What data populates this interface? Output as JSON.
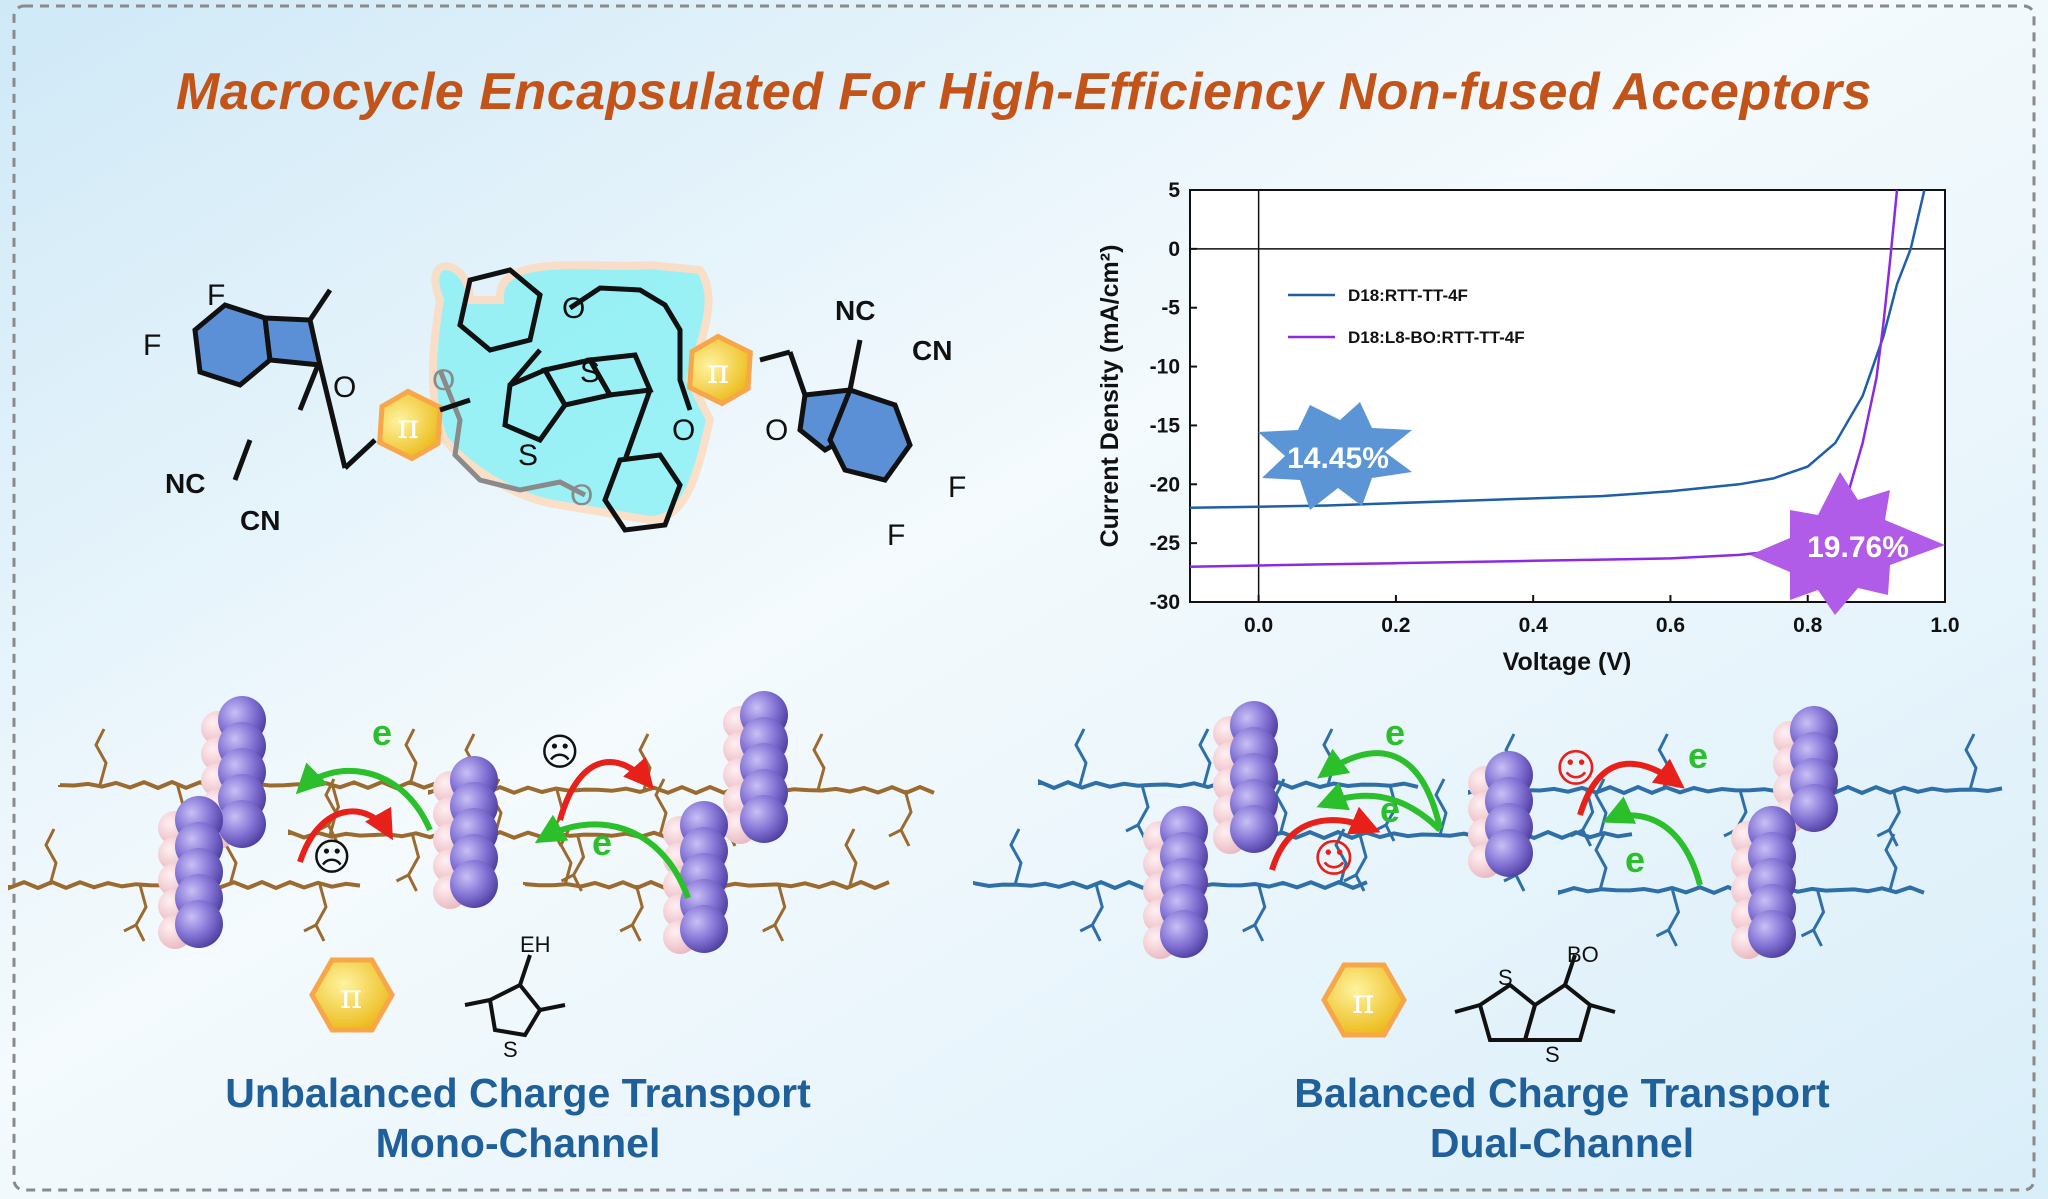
{
  "title": "Macrocycle Encapsulated For High-Efficiency Non-fused Acceptors",
  "molecule": {
    "atom_F": "F",
    "atom_O": "O",
    "atom_S": "S",
    "group_NC": "NC",
    "group_CN": "CN",
    "pi_label": "π"
  },
  "chart_data": {
    "type": "line",
    "xlabel": "Voltage (V)",
    "ylabel": "Current Density (mA/cm²)",
    "xlim": [
      -0.1,
      1.0
    ],
    "ylim": [
      -30,
      5
    ],
    "xticks": [
      "0.0",
      "0.2",
      "0.4",
      "0.6",
      "0.8",
      "1.0"
    ],
    "yticks": [
      "5",
      "0",
      "-5",
      "-10",
      "-15",
      "-20",
      "-25",
      "-30"
    ],
    "legend_placement": "top-left",
    "series": [
      {
        "name": "D18:RTT-TT-4F",
        "color": "#1f5fa8",
        "x": [
          -0.1,
          0.0,
          0.1,
          0.2,
          0.3,
          0.4,
          0.5,
          0.6,
          0.7,
          0.75,
          0.8,
          0.84,
          0.88,
          0.91,
          0.93,
          0.95,
          0.97
        ],
        "y": [
          -22.0,
          -21.9,
          -21.8,
          -21.6,
          -21.4,
          -21.2,
          -21.0,
          -20.6,
          -20.0,
          -19.5,
          -18.5,
          -16.5,
          -12.5,
          -7.5,
          -3.0,
          0.0,
          5.0
        ]
      },
      {
        "name": "D18:L8-BO:RTT-TT-4F",
        "color": "#8a2be2",
        "x": [
          -0.1,
          0.0,
          0.1,
          0.2,
          0.3,
          0.4,
          0.5,
          0.6,
          0.7,
          0.75,
          0.8,
          0.83,
          0.86,
          0.88,
          0.9,
          0.91,
          0.92,
          0.93
        ],
        "y": [
          -27.0,
          -26.9,
          -26.8,
          -26.7,
          -26.6,
          -26.5,
          -26.4,
          -26.3,
          -26.0,
          -25.7,
          -25.0,
          -23.5,
          -20.5,
          -16.5,
          -11.0,
          -6.5,
          -1.0,
          5.0
        ]
      }
    ],
    "annotations": [
      "14.45%",
      "19.76%"
    ]
  },
  "bottom_left": {
    "electron_label": "e",
    "side_chain_label": "EH",
    "line1": "Unbalanced Charge Transport",
    "line2": "Mono-Channel"
  },
  "bottom_right": {
    "electron_label": "e",
    "side_chain_label": "BO",
    "line1": "Balanced Charge Transport",
    "line2": "Dual-Channel"
  },
  "colors": {
    "title": "#c2541a",
    "footer_text": "#1f5f9a",
    "macrocycle_glow": "#7ff0f4",
    "indanone_fill": "#5b8fd6",
    "pi_hexagon": "#f2c21a",
    "spheres": "#8575d6",
    "arrow_green": "#2bbf2b",
    "arrow_red": "#e8201a"
  }
}
